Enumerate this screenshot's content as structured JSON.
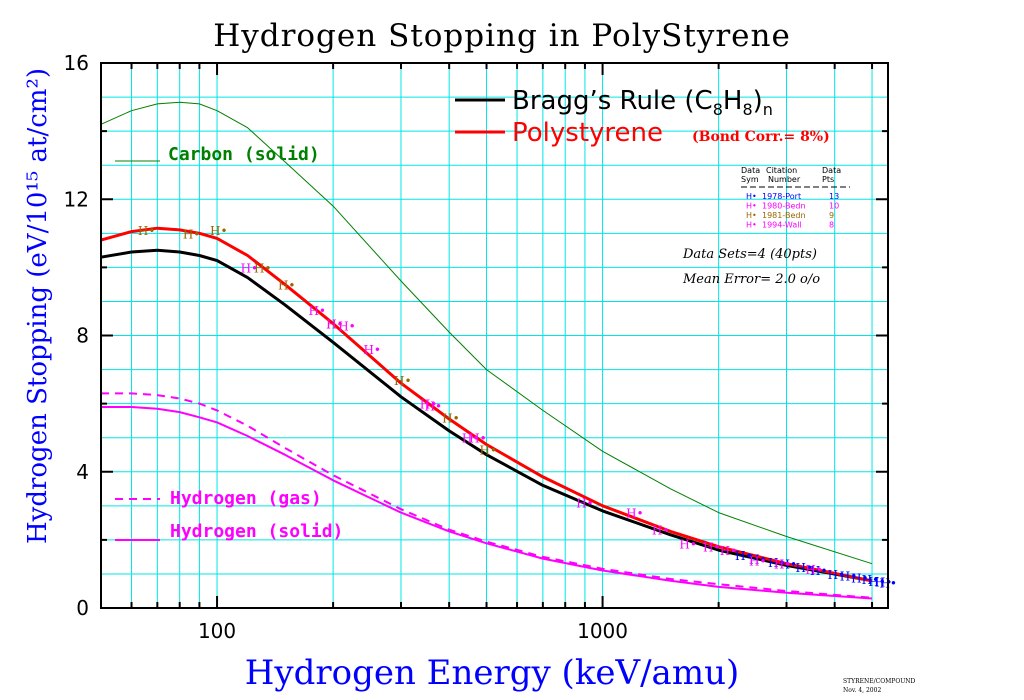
{
  "chart_data": {
    "type": "line",
    "title": "Hydrogen Stopping in PolyStyrene",
    "xlabel": "Hydrogen Energy (keV/amu)",
    "ylabel": "Hydrogen Stopping (eV/10¹⁵ at/cm²)",
    "x_scale": "log",
    "xlim": [
      50,
      5500
    ],
    "ylim": [
      0,
      16
    ],
    "x_ticks": [
      "100",
      "1000"
    ],
    "y_ticks": [
      "0",
      "4",
      "8",
      "12",
      "16"
    ],
    "grid": true,
    "series": [
      {
        "name": "Carbon (solid)",
        "color": "#008000",
        "style": "solid",
        "x": [
          50,
          60,
          70,
          80,
          90,
          100,
          120,
          150,
          200,
          300,
          400,
          500,
          700,
          1000,
          1500,
          2000,
          3000,
          5000
        ],
        "y": [
          14.2,
          14.6,
          14.8,
          14.85,
          14.8,
          14.6,
          14.1,
          13.1,
          11.8,
          9.6,
          8.1,
          7.0,
          5.8,
          4.6,
          3.5,
          2.8,
          2.1,
          1.3
        ]
      },
      {
        "name": "Bragg's Rule (C8H8)n",
        "color": "#000000",
        "style": "solid",
        "x": [
          50,
          60,
          70,
          80,
          90,
          100,
          120,
          150,
          200,
          300,
          400,
          500,
          700,
          1000,
          1500,
          2000,
          3000,
          5000
        ],
        "y": [
          10.3,
          10.45,
          10.5,
          10.45,
          10.35,
          10.2,
          9.7,
          8.9,
          7.8,
          6.2,
          5.2,
          4.5,
          3.6,
          2.85,
          2.15,
          1.7,
          1.25,
          0.8
        ]
      },
      {
        "name": "Polystyrene",
        "color": "#ff0000",
        "style": "solid",
        "x": [
          50,
          60,
          70,
          80,
          90,
          100,
          120,
          150,
          200,
          300,
          400,
          500,
          700,
          1000,
          1500,
          2000,
          3000,
          5000
        ],
        "y": [
          10.8,
          11.05,
          11.15,
          11.1,
          11.0,
          10.85,
          10.35,
          9.5,
          8.35,
          6.6,
          5.55,
          4.8,
          3.85,
          3.0,
          2.25,
          1.8,
          1.3,
          0.8
        ]
      },
      {
        "name": "Hydrogen (gas)",
        "color": "#ff00ff",
        "style": "dashed",
        "x": [
          50,
          60,
          70,
          80,
          90,
          100,
          120,
          150,
          200,
          300,
          400,
          500,
          700,
          1000,
          1500,
          2000,
          3000,
          5000
        ],
        "y": [
          6.3,
          6.3,
          6.25,
          6.15,
          6.0,
          5.8,
          5.35,
          4.7,
          3.9,
          2.9,
          2.3,
          1.95,
          1.5,
          1.15,
          0.85,
          0.7,
          0.5,
          0.3
        ]
      },
      {
        "name": "Hydrogen (solid)",
        "color": "#ff00ff",
        "style": "solid",
        "x": [
          50,
          60,
          70,
          80,
          90,
          100,
          120,
          150,
          200,
          300,
          400,
          500,
          700,
          1000,
          1500,
          2000,
          3000,
          5000
        ],
        "y": [
          5.9,
          5.9,
          5.85,
          5.75,
          5.6,
          5.45,
          5.05,
          4.5,
          3.75,
          2.8,
          2.25,
          1.9,
          1.45,
          1.1,
          0.8,
          0.62,
          0.45,
          0.28
        ]
      }
    ],
    "data_sets": [
      {
        "sym": "H•",
        "citation": "1978-Port",
        "pts": "13",
        "color": "#0000ff",
        "points": [
          [
            2300,
            1.55
          ],
          [
            2500,
            1.45
          ],
          [
            2800,
            1.35
          ],
          [
            3000,
            1.3
          ],
          [
            3300,
            1.2
          ],
          [
            3600,
            1.12
          ],
          [
            4000,
            1.0
          ],
          [
            4300,
            0.95
          ],
          [
            4600,
            0.9
          ],
          [
            4900,
            0.85
          ],
          [
            5100,
            0.8
          ],
          [
            5300,
            0.78
          ],
          [
            5450,
            0.75
          ]
        ]
      },
      {
        "sym": "H•",
        "citation": "1980-Bedn",
        "pts": "10",
        "color": "#ff00ff",
        "points": [
          [
            120,
            10.0
          ],
          [
            180,
            8.75
          ],
          [
            215,
            8.3
          ],
          [
            250,
            7.6
          ],
          [
            350,
            6.0
          ],
          [
            470,
            5.0
          ],
          [
            890,
            3.1
          ],
          [
            1200,
            2.8
          ],
          [
            1650,
            1.9
          ],
          [
            2100,
            1.7
          ]
        ]
      },
      {
        "sym": "H•",
        "citation": "1981-Bedn",
        "pts": "9",
        "color": "#996600",
        "points": [
          [
            65,
            11.1
          ],
          [
            85,
            11.0
          ],
          [
            100,
            11.1
          ],
          [
            130,
            10.0
          ],
          [
            150,
            9.5
          ],
          [
            200,
            8.35
          ],
          [
            300,
            6.7
          ],
          [
            400,
            5.6
          ],
          [
            500,
            4.65
          ]
        ]
      },
      {
        "sym": "H•",
        "citation": "1994-Wall",
        "pts": "8",
        "color": "#ff00ff",
        "points": [
          [
            200,
            8.35
          ],
          [
            360,
            5.95
          ],
          [
            450,
            5.0
          ],
          [
            1400,
            2.3
          ],
          [
            1900,
            1.8
          ],
          [
            2500,
            1.4
          ],
          [
            2900,
            1.3
          ],
          [
            3500,
            1.15
          ]
        ]
      }
    ],
    "table_header": {
      "col1": [
        "Data",
        "Sym"
      ],
      "col2": [
        "Citation",
        "Number"
      ],
      "col3": [
        "Data",
        "Pts"
      ]
    },
    "stats": {
      "data_sets": "Data Sets=4 (40pts)",
      "mean_error": "Mean Error=  2.0 o/o"
    },
    "bond_corr": "(Bond Corr.= 8%)"
  },
  "footer": {
    "line1": "STYRENE/COMPOUND",
    "line2": "Nov. 4, 2002"
  }
}
